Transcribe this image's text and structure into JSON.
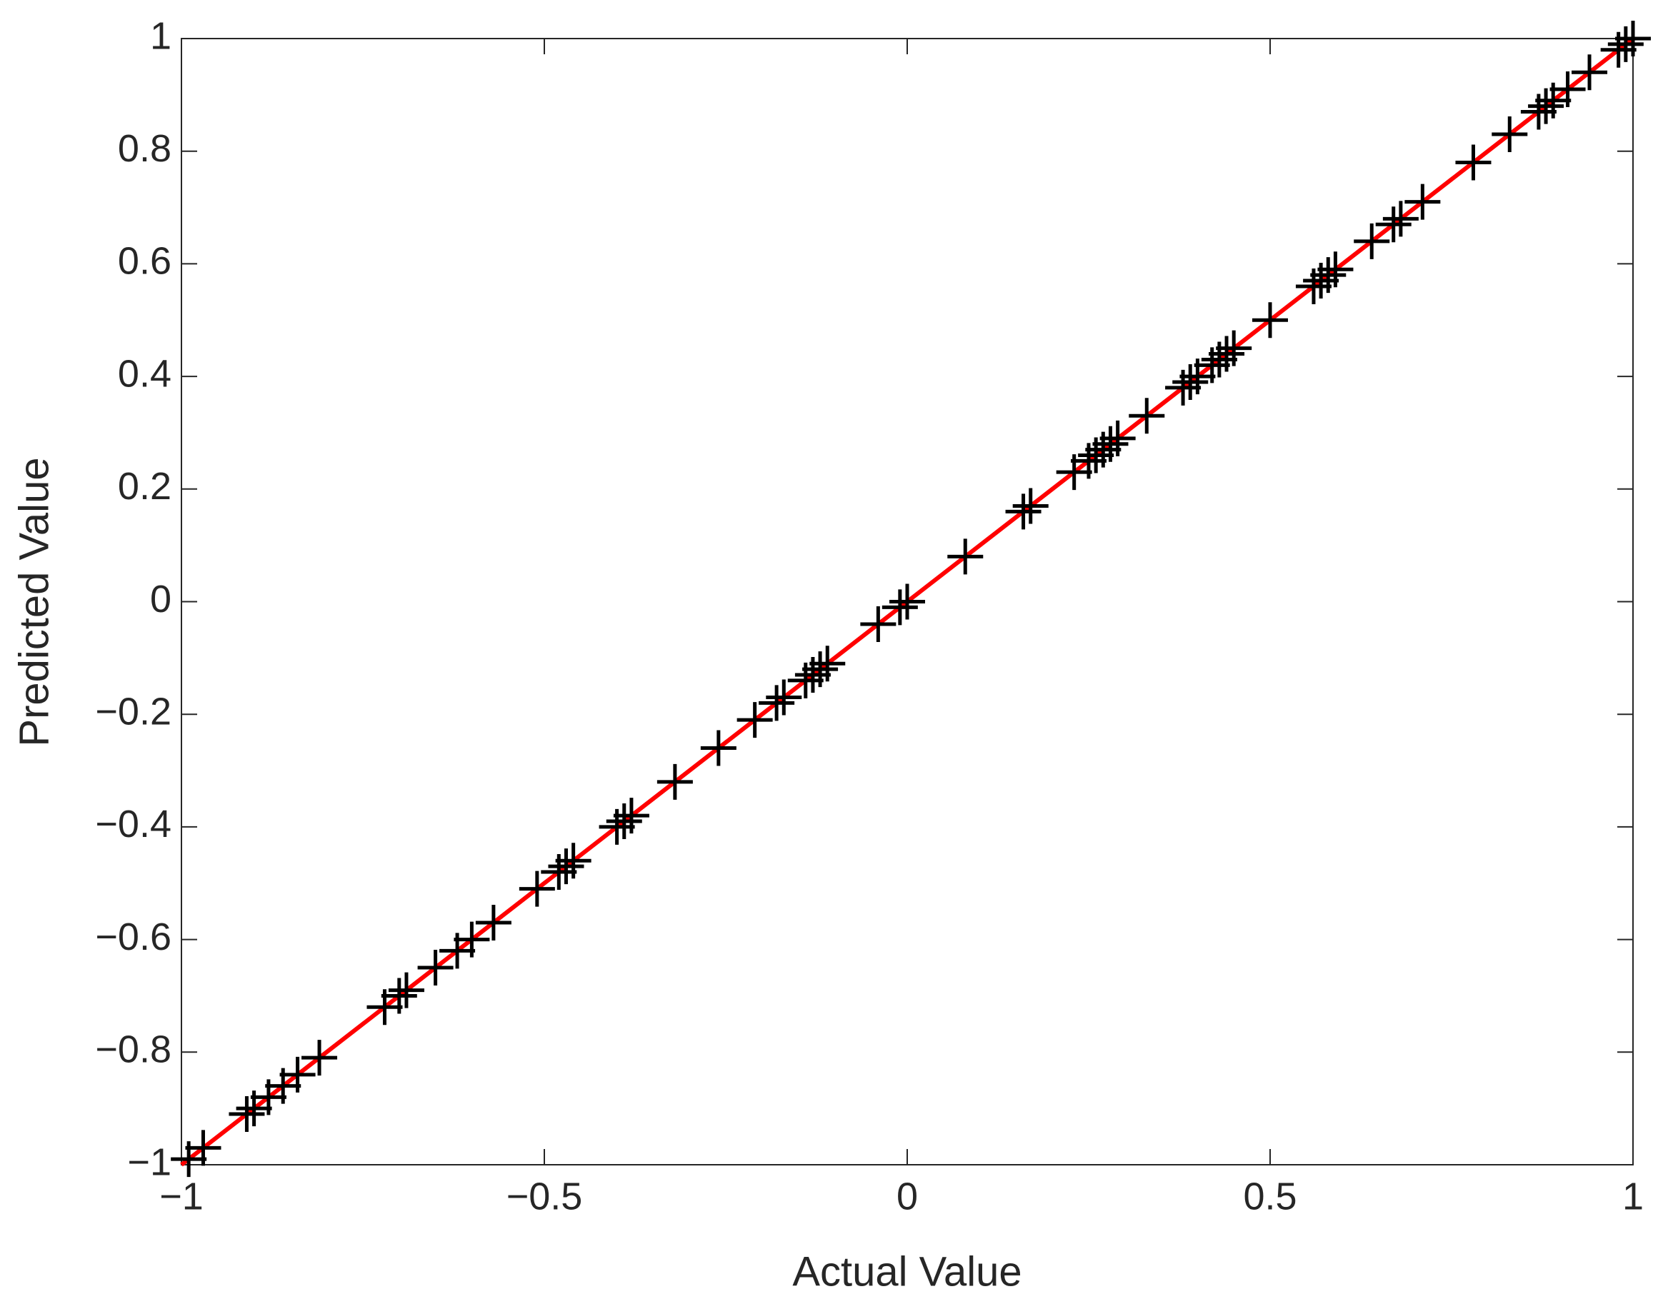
{
  "chart_data": {
    "type": "scatter",
    "x_label": "Actual Value",
    "y_label": "Predicted Value",
    "marker": "+",
    "color": "#000000",
    "x": [
      -0.99,
      -0.97,
      -0.91,
      -0.9,
      -0.88,
      -0.86,
      -0.84,
      -0.81,
      -0.72,
      -0.7,
      -0.69,
      -0.65,
      -0.62,
      -0.6,
      -0.57,
      -0.51,
      -0.48,
      -0.47,
      -0.46,
      -0.4,
      -0.39,
      -0.38,
      -0.32,
      -0.26,
      -0.21,
      -0.18,
      -0.17,
      -0.14,
      -0.13,
      -0.12,
      -0.11,
      -0.04,
      -0.01,
      0.0,
      0.08,
      0.16,
      0.17,
      0.23,
      0.25,
      0.26,
      0.27,
      0.28,
      0.29,
      0.33,
      0.38,
      0.39,
      0.4,
      0.42,
      0.43,
      0.44,
      0.45,
      0.5,
      0.56,
      0.57,
      0.58,
      0.59,
      0.64,
      0.67,
      0.68,
      0.71,
      0.78,
      0.83,
      0.87,
      0.88,
      0.89,
      0.91,
      0.94,
      0.98,
      0.99,
      1.0
    ],
    "values": [
      -0.99,
      -0.97,
      -0.91,
      -0.9,
      -0.88,
      -0.86,
      -0.84,
      -0.81,
      -0.72,
      -0.7,
      -0.69,
      -0.65,
      -0.62,
      -0.6,
      -0.57,
      -0.51,
      -0.48,
      -0.47,
      -0.46,
      -0.4,
      -0.39,
      -0.38,
      -0.32,
      -0.26,
      -0.21,
      -0.18,
      -0.17,
      -0.14,
      -0.13,
      -0.12,
      -0.11,
      -0.04,
      -0.01,
      0.0,
      0.08,
      0.16,
      0.17,
      0.23,
      0.25,
      0.26,
      0.27,
      0.28,
      0.29,
      0.33,
      0.38,
      0.39,
      0.4,
      0.42,
      0.43,
      0.44,
      0.45,
      0.5,
      0.56,
      0.57,
      0.58,
      0.59,
      0.64,
      0.67,
      0.68,
      0.71,
      0.78,
      0.83,
      0.87,
      0.88,
      0.89,
      0.91,
      0.94,
      0.98,
      0.99,
      1.0
    ],
    "line": {
      "color": "#ff0000",
      "x": [
        -1,
        1
      ],
      "values": [
        -1,
        1
      ]
    },
    "xlim": [
      -1,
      1
    ],
    "ylim": [
      -1,
      1
    ],
    "xticks": [
      {
        "value": -1,
        "label": "−1"
      },
      {
        "value": -0.5,
        "label": "−0.5"
      },
      0,
      0.5,
      1
    ],
    "yticks": [
      {
        "value": -1,
        "label": "−1"
      },
      {
        "value": -0.8,
        "label": "−0.8"
      },
      {
        "value": -0.6,
        "label": "−0.6"
      },
      {
        "value": -0.4,
        "label": "−0.4"
      },
      {
        "value": -0.2,
        "label": "−0.2"
      },
      0,
      0.2,
      0.4,
      0.6,
      0.8,
      1
    ],
    "grid": false
  }
}
